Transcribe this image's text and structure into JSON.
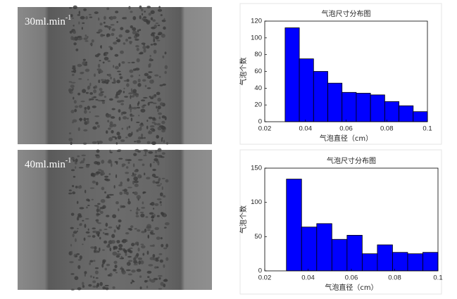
{
  "photos": [
    {
      "label": "30ml.min",
      "sup": "-1"
    },
    {
      "label": "40ml.min",
      "sup": "-1"
    }
  ],
  "chart_data": [
    {
      "type": "histogram",
      "title": "气泡尺寸分布图",
      "x_label": "气泡直径（cm）",
      "y_label": "气泡个数",
      "bins": [
        0.03,
        0.037,
        0.044,
        0.051,
        0.058,
        0.065,
        0.072,
        0.079,
        0.086,
        0.093,
        0.1
      ],
      "values": [
        112,
        75,
        60,
        46,
        35,
        34,
        32,
        24,
        19,
        12
      ],
      "color": "#0000ff",
      "xlim": [
        0.02,
        0.1
      ],
      "xticks": [
        0.02,
        0.04,
        0.06,
        0.08,
        0.1
      ],
      "ylim": [
        0,
        120
      ],
      "yticks": [
        0,
        20,
        40,
        60,
        80,
        100,
        120
      ]
    },
    {
      "type": "histogram",
      "title": "气泡尺寸分布图",
      "x_label": "气泡直径（cm）",
      "y_label": "气泡个数",
      "bins": [
        0.03,
        0.037,
        0.044,
        0.051,
        0.058,
        0.065,
        0.072,
        0.079,
        0.086,
        0.093,
        0.1
      ],
      "values": [
        134,
        64,
        69,
        46,
        52,
        25,
        38,
        27,
        25,
        27
      ],
      "color": "#0000ff",
      "xlim": [
        0.02,
        0.1
      ],
      "xticks": [
        0.02,
        0.04,
        0.06,
        0.08,
        0.1
      ],
      "ylim": [
        0,
        150
      ],
      "yticks": [
        0,
        50,
        100,
        150
      ]
    }
  ]
}
